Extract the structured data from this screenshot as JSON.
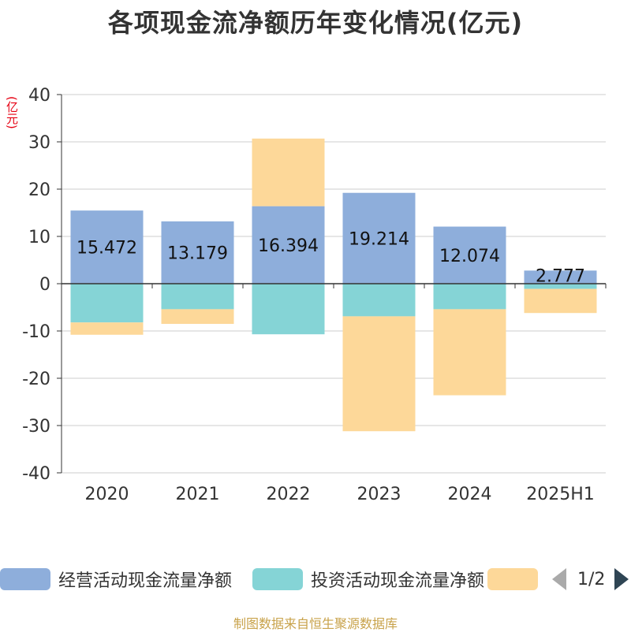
{
  "title": "各项现金流净额历年变化情况(亿元)",
  "unit_label": "(亿元)",
  "footer": "制图数据来自恒生聚源数据库",
  "pager": {
    "text": "1/2"
  },
  "colors": {
    "operating": "#8eaedb",
    "investing": "#85d4d6",
    "financing": "#fdd899",
    "grid": "#cccccc",
    "axis": "#333333",
    "unit": "#e60012"
  },
  "chart_data": {
    "type": "bar",
    "stacked": true,
    "categories": [
      "2020",
      "2021",
      "2022",
      "2023",
      "2024",
      "2025H1"
    ],
    "ylim": [
      -40,
      40
    ],
    "yticks": [
      40,
      30,
      20,
      10,
      0,
      -10,
      -20,
      -30,
      -40
    ],
    "grid": true,
    "legend_position": "bottom",
    "series": [
      {
        "name": "经营活动现金流量净额",
        "color": "#8eaedb",
        "values": [
          15.472,
          13.179,
          16.394,
          19.214,
          12.074,
          2.777
        ],
        "labels": [
          "15.472",
          "13.179",
          "16.394",
          "19.214",
          "12.074",
          "2.777"
        ]
      },
      {
        "name": "投资活动现金流量净额",
        "color": "#85d4d6",
        "values": [
          -8.2,
          -5.4,
          -10.7,
          -6.9,
          -5.4,
          -1.1
        ]
      },
      {
        "name": "",
        "color": "#fdd899",
        "values": [
          -2.6,
          -3.1,
          14.3,
          -24.3,
          -18.2,
          -5.1
        ]
      }
    ]
  }
}
